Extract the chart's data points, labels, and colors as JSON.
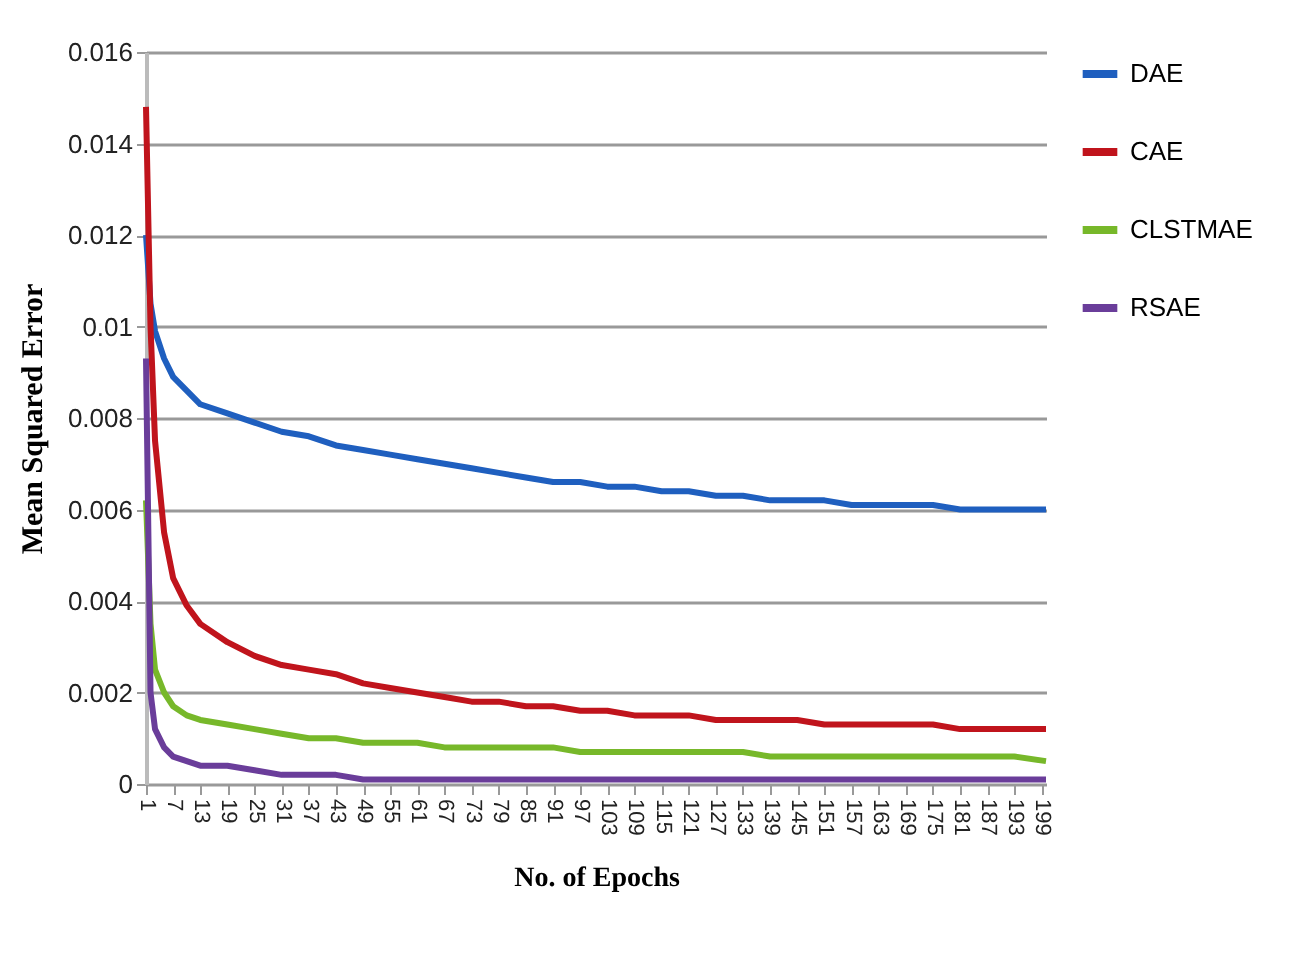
{
  "chart_data": {
    "type": "line",
    "xlabel": "No. of Epochs",
    "ylabel": "Mean Squared Error",
    "x": [
      1,
      2,
      3,
      5,
      7,
      10,
      13,
      19,
      25,
      31,
      37,
      43,
      49,
      55,
      61,
      67,
      73,
      79,
      85,
      91,
      97,
      103,
      109,
      115,
      121,
      127,
      133,
      139,
      145,
      151,
      157,
      163,
      169,
      175,
      181,
      187,
      193,
      200
    ],
    "series": [
      {
        "name": "DAE",
        "color": "#1f5fbf",
        "values": [
          0.012,
          0.0105,
          0.0099,
          0.0093,
          0.0089,
          0.0086,
          0.0083,
          0.0081,
          0.0079,
          0.0077,
          0.0076,
          0.0074,
          0.0073,
          0.0072,
          0.0071,
          0.007,
          0.0069,
          0.0068,
          0.0067,
          0.0066,
          0.0066,
          0.0065,
          0.0065,
          0.0064,
          0.0064,
          0.0063,
          0.0063,
          0.0062,
          0.0062,
          0.0062,
          0.0061,
          0.0061,
          0.0061,
          0.0061,
          0.006,
          0.006,
          0.006,
          0.006
        ]
      },
      {
        "name": "CAE",
        "color": "#c0141c",
        "values": [
          0.0148,
          0.01,
          0.0075,
          0.0055,
          0.0045,
          0.0039,
          0.0035,
          0.0031,
          0.0028,
          0.0026,
          0.0025,
          0.0024,
          0.0022,
          0.0021,
          0.002,
          0.0019,
          0.0018,
          0.0018,
          0.0017,
          0.0017,
          0.0016,
          0.0016,
          0.0015,
          0.0015,
          0.0015,
          0.0014,
          0.0014,
          0.0014,
          0.0014,
          0.0013,
          0.0013,
          0.0013,
          0.0013,
          0.0013,
          0.0012,
          0.0012,
          0.0012,
          0.0012
        ]
      },
      {
        "name": "CLSTMAE",
        "color": "#77b82a",
        "values": [
          0.0062,
          0.0035,
          0.0025,
          0.002,
          0.0017,
          0.0015,
          0.0014,
          0.0013,
          0.0012,
          0.0011,
          0.001,
          0.001,
          0.0009,
          0.0009,
          0.0009,
          0.0008,
          0.0008,
          0.0008,
          0.0008,
          0.0008,
          0.0007,
          0.0007,
          0.0007,
          0.0007,
          0.0007,
          0.0007,
          0.0007,
          0.0006,
          0.0006,
          0.0006,
          0.0006,
          0.0006,
          0.0006,
          0.0006,
          0.0006,
          0.0006,
          0.0006,
          0.0005
        ]
      },
      {
        "name": "RSAE",
        "color": "#6a3d9a",
        "values": [
          0.0093,
          0.002,
          0.0012,
          0.0008,
          0.0006,
          0.0005,
          0.0004,
          0.0004,
          0.0003,
          0.0002,
          0.0002,
          0.0002,
          0.0001,
          0.0001,
          0.0001,
          0.0001,
          0.0001,
          0.0001,
          0.0001,
          0.0001,
          0.0001,
          0.0001,
          0.0001,
          0.0001,
          0.0001,
          0.0001,
          0.0001,
          0.0001,
          0.0001,
          0.0001,
          0.0001,
          0.0001,
          0.0001,
          0.0001,
          0.0001,
          0.0001,
          0.0001,
          0.0001
        ]
      }
    ],
    "xlim": [
      1,
      200
    ],
    "xticks": [
      1,
      7,
      13,
      19,
      25,
      31,
      37,
      43,
      49,
      55,
      61,
      67,
      73,
      79,
      85,
      91,
      97,
      103,
      109,
      115,
      121,
      127,
      133,
      139,
      145,
      151,
      157,
      163,
      169,
      175,
      181,
      187,
      193,
      199
    ],
    "ylim": [
      0,
      0.016
    ],
    "yticks": [
      0,
      0.002,
      0.004,
      0.006,
      0.008,
      0.01,
      0.012,
      0.014,
      0.016
    ],
    "grid": "y",
    "legend": "right"
  }
}
